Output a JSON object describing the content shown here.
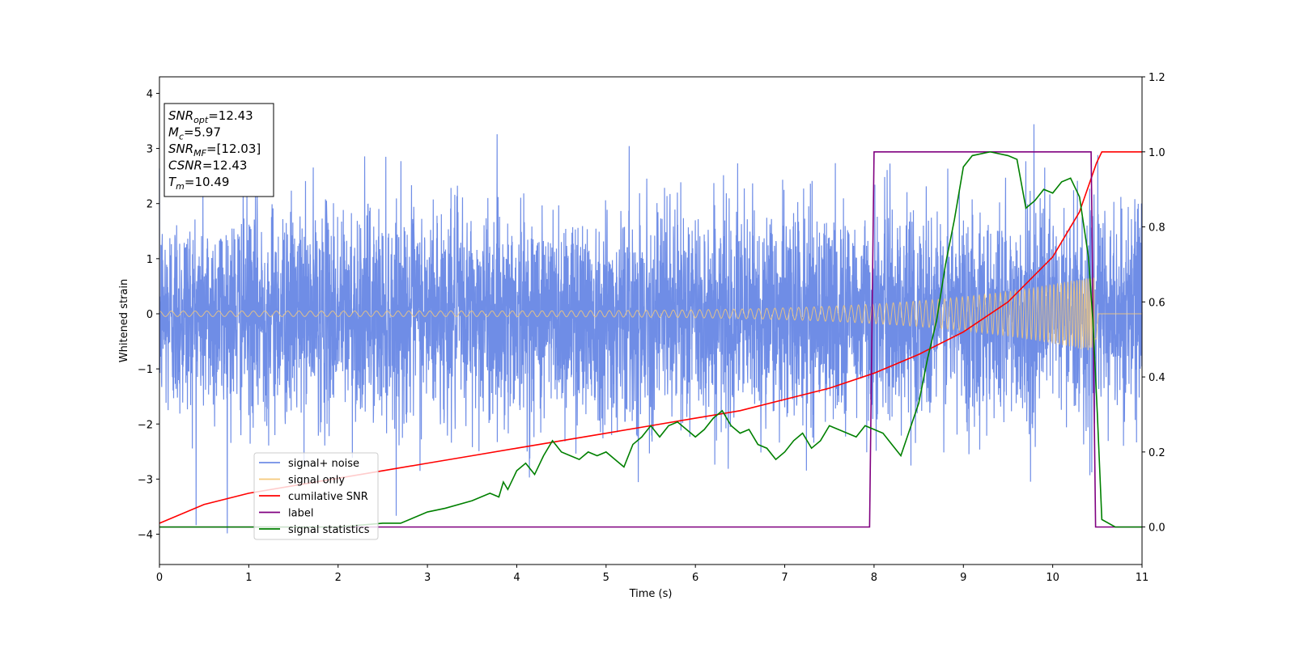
{
  "chart_data": {
    "type": "line",
    "xlabel": "Time (s)",
    "ylabel": "Whitened strain",
    "xlim": [
      0,
      11
    ],
    "ylim": [
      -4.55,
      4.3
    ],
    "y2lim": [
      -0.1,
      1.2
    ],
    "x_ticks": [
      0,
      1,
      2,
      3,
      4,
      5,
      6,
      7,
      8,
      9,
      10,
      11
    ],
    "y_ticks": [
      -4,
      -3,
      -2,
      -1,
      0,
      1,
      2,
      3,
      4
    ],
    "y2_ticks": [
      0.0,
      0.2,
      0.4,
      0.6,
      0.8,
      1.0,
      1.2
    ],
    "grid": false,
    "legend_position": "lower-left",
    "colors": {
      "noise": "#6f8de6",
      "signal": "#f5c97a",
      "snr": "#ff0000",
      "label": "#800080",
      "stat": "#008000"
    },
    "info_box": [
      {
        "sym": "SNR",
        "sub": "opt",
        "value": "=12.43"
      },
      {
        "sym": "M",
        "sub": "c",
        "value": "=5.97"
      },
      {
        "sym": "SNR",
        "sub": "MF",
        "value": "=[12.03]"
      },
      {
        "sym": "CSNR",
        "sub": "",
        "value": "=12.43"
      },
      {
        "sym": "T",
        "sub": "m",
        "value": "=10.49"
      }
    ],
    "series": [
      {
        "name": "signal+ noise",
        "axis": "left",
        "description_type": "noise",
        "x_range": [
          0,
          11
        ],
        "std": 1.0,
        "max": 3.88,
        "min": -4.15
      },
      {
        "name": "signal only",
        "axis": "left",
        "description_type": "chirp",
        "x_range": [
          0,
          10.49
        ],
        "amplitude_start": 0.05,
        "amplitude_end": 0.7
      },
      {
        "name": "cumilative SNR",
        "axis": "right",
        "x": [
          0,
          0.5,
          1,
          1.5,
          2,
          2.5,
          3,
          3.5,
          4,
          4.5,
          5,
          5.5,
          6,
          6.5,
          7,
          7.5,
          8,
          8.5,
          9,
          9.5,
          10,
          10.3,
          10.49,
          10.55,
          11
        ],
        "y": [
          0.01,
          0.06,
          0.09,
          0.11,
          0.13,
          0.15,
          0.17,
          0.19,
          0.21,
          0.23,
          0.25,
          0.27,
          0.29,
          0.31,
          0.34,
          0.37,
          0.41,
          0.46,
          0.52,
          0.6,
          0.72,
          0.84,
          0.97,
          1.0,
          1.0
        ]
      },
      {
        "name": "label",
        "axis": "right",
        "x": [
          0,
          7.95,
          8.0,
          10.43,
          10.48,
          11
        ],
        "y": [
          0,
          0,
          1,
          1,
          0,
          0
        ]
      },
      {
        "name": "signal statistics",
        "axis": "right",
        "x": [
          0,
          0.5,
          1,
          1.5,
          2,
          2.5,
          2.7,
          3,
          3.2,
          3.5,
          3.7,
          3.8,
          3.85,
          3.9,
          4,
          4.1,
          4.2,
          4.3,
          4.4,
          4.5,
          4.6,
          4.7,
          4.8,
          4.9,
          5,
          5.1,
          5.2,
          5.3,
          5.4,
          5.5,
          5.6,
          5.7,
          5.8,
          5.9,
          6,
          6.1,
          6.2,
          6.3,
          6.4,
          6.5,
          6.6,
          6.7,
          6.8,
          6.9,
          7,
          7.1,
          7.2,
          7.3,
          7.4,
          7.5,
          7.6,
          7.7,
          7.8,
          7.9,
          8.0,
          8.1,
          8.2,
          8.3,
          8.4,
          8.5,
          8.6,
          8.7,
          8.8,
          8.9,
          9.0,
          9.1,
          9.3,
          9.5,
          9.6,
          9.7,
          9.8,
          9.9,
          10.0,
          10.1,
          10.2,
          10.3,
          10.4,
          10.45,
          10.5,
          10.55,
          10.7,
          11
        ],
        "y": [
          0.0,
          0.0,
          0.0,
          0.0,
          0.0,
          0.01,
          0.01,
          0.04,
          0.05,
          0.07,
          0.09,
          0.08,
          0.12,
          0.1,
          0.15,
          0.17,
          0.14,
          0.19,
          0.23,
          0.2,
          0.19,
          0.18,
          0.2,
          0.19,
          0.2,
          0.18,
          0.16,
          0.22,
          0.24,
          0.27,
          0.24,
          0.27,
          0.28,
          0.26,
          0.24,
          0.26,
          0.29,
          0.31,
          0.27,
          0.25,
          0.26,
          0.22,
          0.21,
          0.18,
          0.2,
          0.23,
          0.25,
          0.21,
          0.23,
          0.27,
          0.26,
          0.25,
          0.24,
          0.27,
          0.26,
          0.25,
          0.22,
          0.19,
          0.26,
          0.33,
          0.45,
          0.55,
          0.7,
          0.82,
          0.96,
          0.99,
          1.0,
          0.99,
          0.98,
          0.85,
          0.87,
          0.9,
          0.89,
          0.92,
          0.93,
          0.88,
          0.72,
          0.55,
          0.3,
          0.02,
          0.0,
          0.0
        ]
      }
    ]
  }
}
